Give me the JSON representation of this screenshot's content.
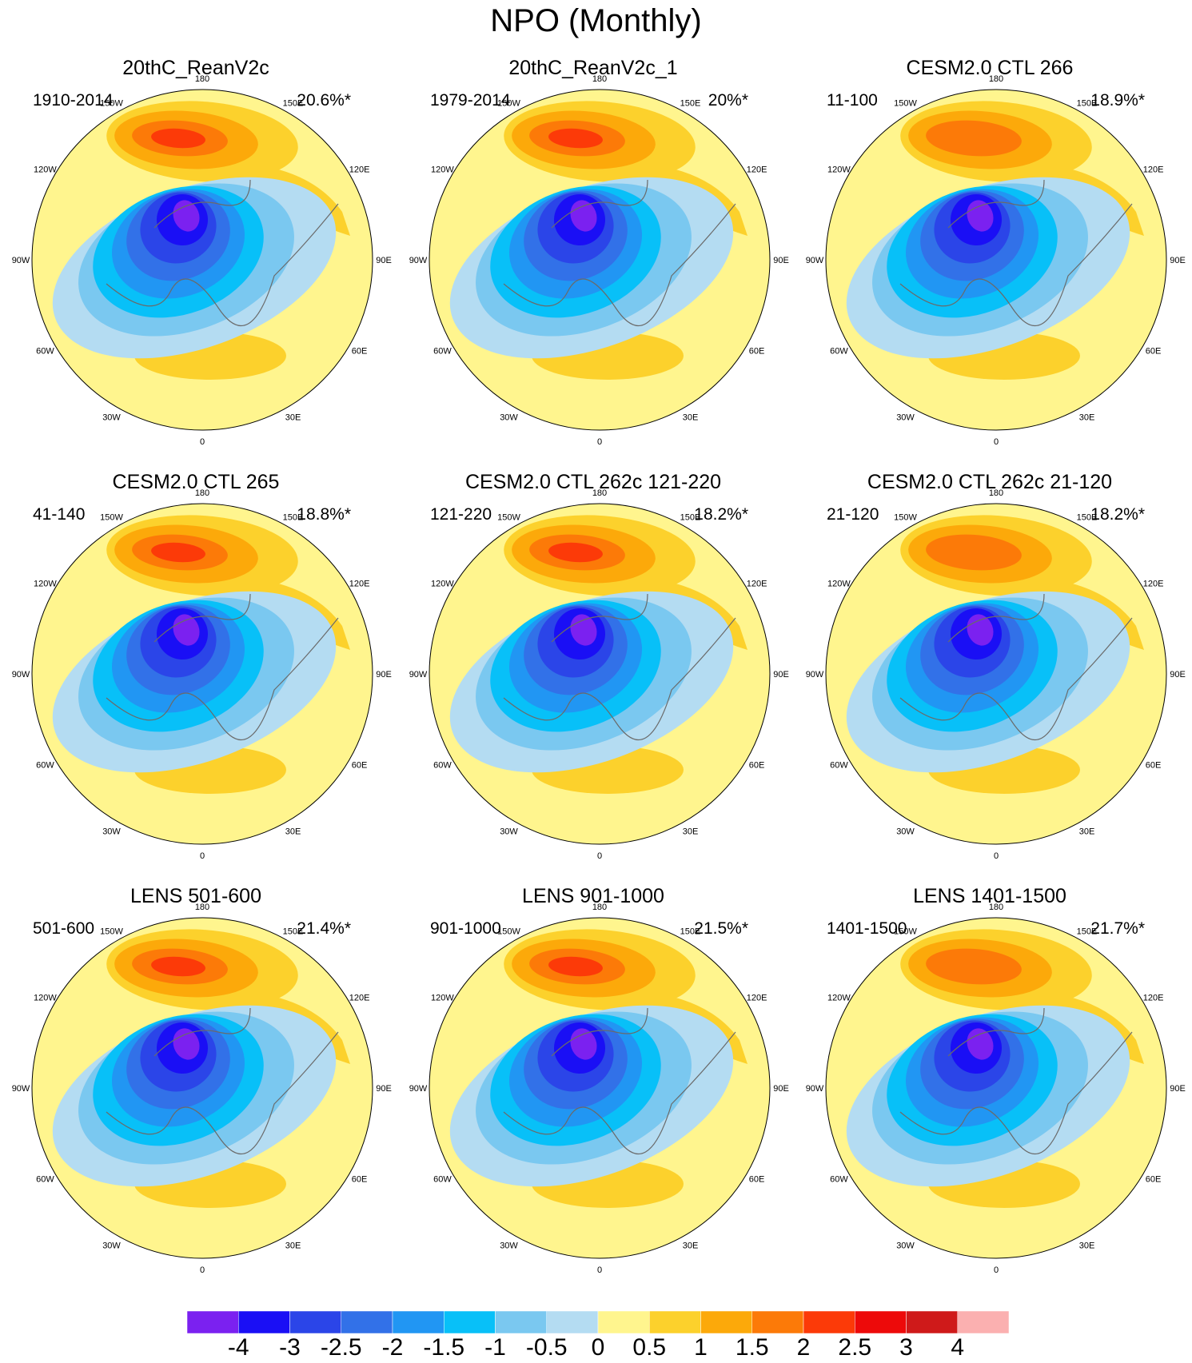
{
  "figure": {
    "title": "NPO (Monthly)",
    "colorbar": {
      "ticks": [
        "-4",
        "-3",
        "-2.5",
        "-2",
        "-1.5",
        "-1",
        "-0.5",
        "0",
        "0.5",
        "1",
        "1.5",
        "2",
        "2.5",
        "3",
        "4"
      ],
      "colors": [
        "#7b21f0",
        "#1a0ff5",
        "#2b45e8",
        "#3271e8",
        "#2196f3",
        "#08c0f8",
        "#7ac8f0",
        "#b4dcf2",
        "#fff58e",
        "#fcd12c",
        "#fca90a",
        "#fc7a08",
        "#fc3a08",
        "#ed0a0a",
        "#cf1a1a",
        "#fbb0b0"
      ]
    },
    "longitude_labels": [
      "180",
      "150E",
      "120E",
      "90E",
      "60E",
      "30E",
      "0",
      "30W",
      "60W",
      "90W",
      "120W",
      "150W"
    ],
    "panels": [
      {
        "title": "20thC_ReanV2c",
        "period": "1910-2014",
        "variance": "20.6%*"
      },
      {
        "title": "20thC_ReanV2c_1",
        "period": "1979-2014",
        "variance": "20%*"
      },
      {
        "title": "CESM2.0 CTL 266",
        "period": "11-100",
        "variance": "18.9%*"
      },
      {
        "title": "CESM2.0 CTL 265",
        "period": "41-140",
        "variance": "18.8%*"
      },
      {
        "title": "CESM2.0 CTL 262c 121-220",
        "period": "121-220",
        "variance": "18.2%*"
      },
      {
        "title": "CESM2.0 CTL 262c 21-120",
        "period": "21-120",
        "variance": "18.2%*"
      },
      {
        "title": "LENS 501-600",
        "period": "501-600",
        "variance": "21.4%*"
      },
      {
        "title": "LENS 901-1000",
        "period": "901-1000",
        "variance": "21.5%*"
      },
      {
        "title": "LENS 1401-1500",
        "period": "1401-1500",
        "variance": "21.7%*"
      }
    ]
  }
}
